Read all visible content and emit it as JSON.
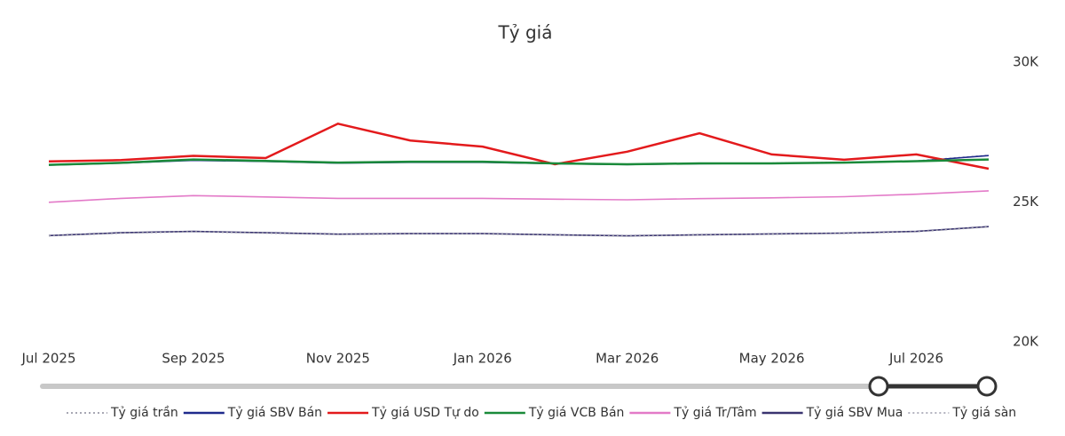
{
  "chart_data": {
    "type": "line",
    "title": "Tỷ giá",
    "x": [
      "2025-07",
      "2025-08",
      "2025-09",
      "2025-10",
      "2025-11",
      "2025-12",
      "2026-01",
      "2026-02",
      "2026-03",
      "2026-04",
      "2026-05",
      "2026-06",
      "2026-07",
      "2026-08"
    ],
    "xlim": [
      "2025-07",
      "2026-08"
    ],
    "xticks": [
      {
        "value": "2025-07",
        "label": "Jul 2025"
      },
      {
        "value": "2025-09",
        "label": "Sep 2025"
      },
      {
        "value": "2025-11",
        "label": "Nov 2025"
      },
      {
        "value": "2026-01",
        "label": "Jan 2026"
      },
      {
        "value": "2026-03",
        "label": "Mar 2026"
      },
      {
        "value": "2026-05",
        "label": "May 2026"
      },
      {
        "value": "2026-07",
        "label": "Jul 2026"
      }
    ],
    "ylim": [
      20000,
      30000
    ],
    "yticks": [
      {
        "value": 20000,
        "label": "20K"
      },
      {
        "value": 25000,
        "label": "25K"
      },
      {
        "value": 30000,
        "label": "30K"
      }
    ],
    "series": [
      {
        "name": "Tỷ giá trần",
        "color": "#8a8a9a",
        "dash": true,
        "values": [
          26330,
          26400,
          26500,
          26460,
          26400,
          26430,
          26430,
          26380,
          26350,
          26380,
          26390,
          26420,
          26470,
          26670
        ]
      },
      {
        "name": "Tỷ giá SBV Bán",
        "color": "#1f2a8c",
        "dash": false,
        "values": [
          26320,
          26390,
          26490,
          26450,
          26390,
          26420,
          26420,
          26370,
          26340,
          26370,
          26380,
          26410,
          26460,
          26660
        ]
      },
      {
        "name": "Tỷ giá USD Tự do",
        "color": "#e31a1c",
        "dash": false,
        "values": [
          26450,
          26500,
          26650,
          26570,
          27800,
          27200,
          26980,
          26350,
          26800,
          27460,
          26700,
          26510,
          26700,
          26190
        ]
      },
      {
        "name": "Tỷ giá VCB Bán",
        "color": "#1a8a3a",
        "dash": false,
        "values": [
          26330,
          26400,
          26520,
          26470,
          26410,
          26440,
          26440,
          26380,
          26350,
          26380,
          26380,
          26410,
          26460,
          26520
        ]
      },
      {
        "name": "Tỷ giá Tr/Tâm",
        "color": "#e37ac8",
        "dash": false,
        "values": [
          24990,
          25130,
          25230,
          25180,
          25130,
          25130,
          25130,
          25100,
          25080,
          25120,
          25150,
          25190,
          25280,
          25400
        ]
      },
      {
        "name": "Tỷ giá SBV Mua",
        "color": "#3a3470",
        "dash": false,
        "values": [
          23800,
          23900,
          23950,
          23900,
          23850,
          23870,
          23870,
          23830,
          23790,
          23830,
          23860,
          23890,
          23950,
          24120
        ]
      },
      {
        "name": "Tỷ giá sàn",
        "color": "#9a9aaa",
        "dash": true,
        "values": [
          23790,
          23890,
          23940,
          23890,
          23840,
          23860,
          23860,
          23820,
          23780,
          23820,
          23850,
          23880,
          23940,
          24110
        ]
      }
    ]
  }
}
